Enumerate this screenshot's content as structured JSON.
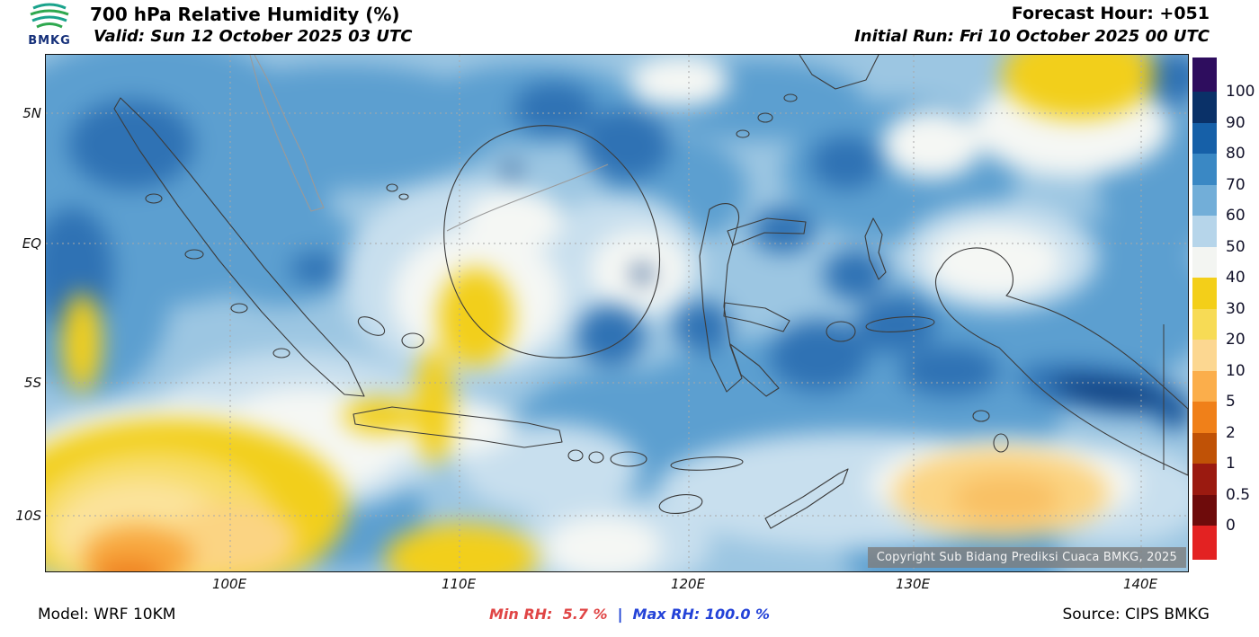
{
  "header": {
    "logo_text": "BMKG",
    "title": "700 hPa Relative Humidity (%)",
    "valid_label": "Valid: Sun 12 October 2025 03 UTC",
    "forecast_hour": "Forecast Hour: +051",
    "initial_run": "Initial Run: Fri 10 October 2025 00 UTC"
  },
  "map": {
    "lat_labels": [
      "5N",
      "EQ",
      "5S",
      "10S"
    ],
    "lon_labels": [
      "100E",
      "110E",
      "120E",
      "130E",
      "140E"
    ],
    "copyright": "Copyright Sub Bidang Prediksi Cuaca BMKG, 2025"
  },
  "colorbar": {
    "tick_labels": [
      "100",
      "90",
      "80",
      "70",
      "60",
      "50",
      "40",
      "30",
      "20",
      "10",
      "5",
      "2",
      "1",
      "0.5",
      "0"
    ],
    "colors_top_to_bottom": [
      "#2e0d5e",
      "#0a3168",
      "#1660a8",
      "#3a88c4",
      "#72aed8",
      "#b6d5ea",
      "#f3f5f2",
      "#f3cf19",
      "#f7db55",
      "#fcd791",
      "#fbae4b",
      "#f08019",
      "#c05206",
      "#9b1a10",
      "#6e0b0b",
      "#e32222"
    ]
  },
  "footer": {
    "model": "Model: WRF 10KM",
    "min_rh": "Min RH:  5.7 %",
    "divider": "|",
    "max_rh": "Max RH: 100.0 %",
    "source": "Source: CIPS BMKG"
  }
}
